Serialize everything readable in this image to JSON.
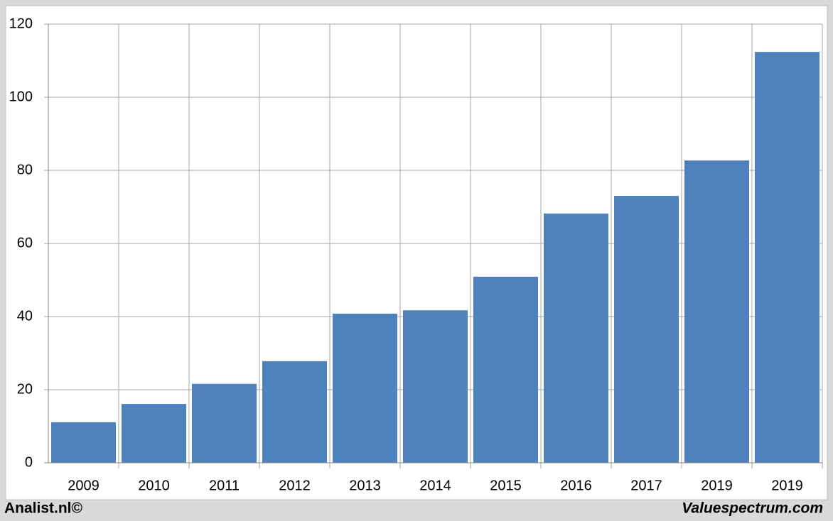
{
  "chart_data": {
    "type": "bar",
    "categories": [
      "2009",
      "2010",
      "2011",
      "2012",
      "2013",
      "2014",
      "2015",
      "2016",
      "2017",
      "2019",
      "2019"
    ],
    "values": [
      11.1,
      16.1,
      21.6,
      27.8,
      40.8,
      41.7,
      50.9,
      68.2,
      73.0,
      82.7,
      112.4
    ],
    "color": "#4f81bd",
    "ylim": [
      0,
      120
    ],
    "yticks": [
      0,
      20,
      40,
      60,
      80,
      100,
      120
    ],
    "grid": true,
    "footer_left": "Analist.nl©",
    "footer_right": "Valuespectrum.com"
  }
}
